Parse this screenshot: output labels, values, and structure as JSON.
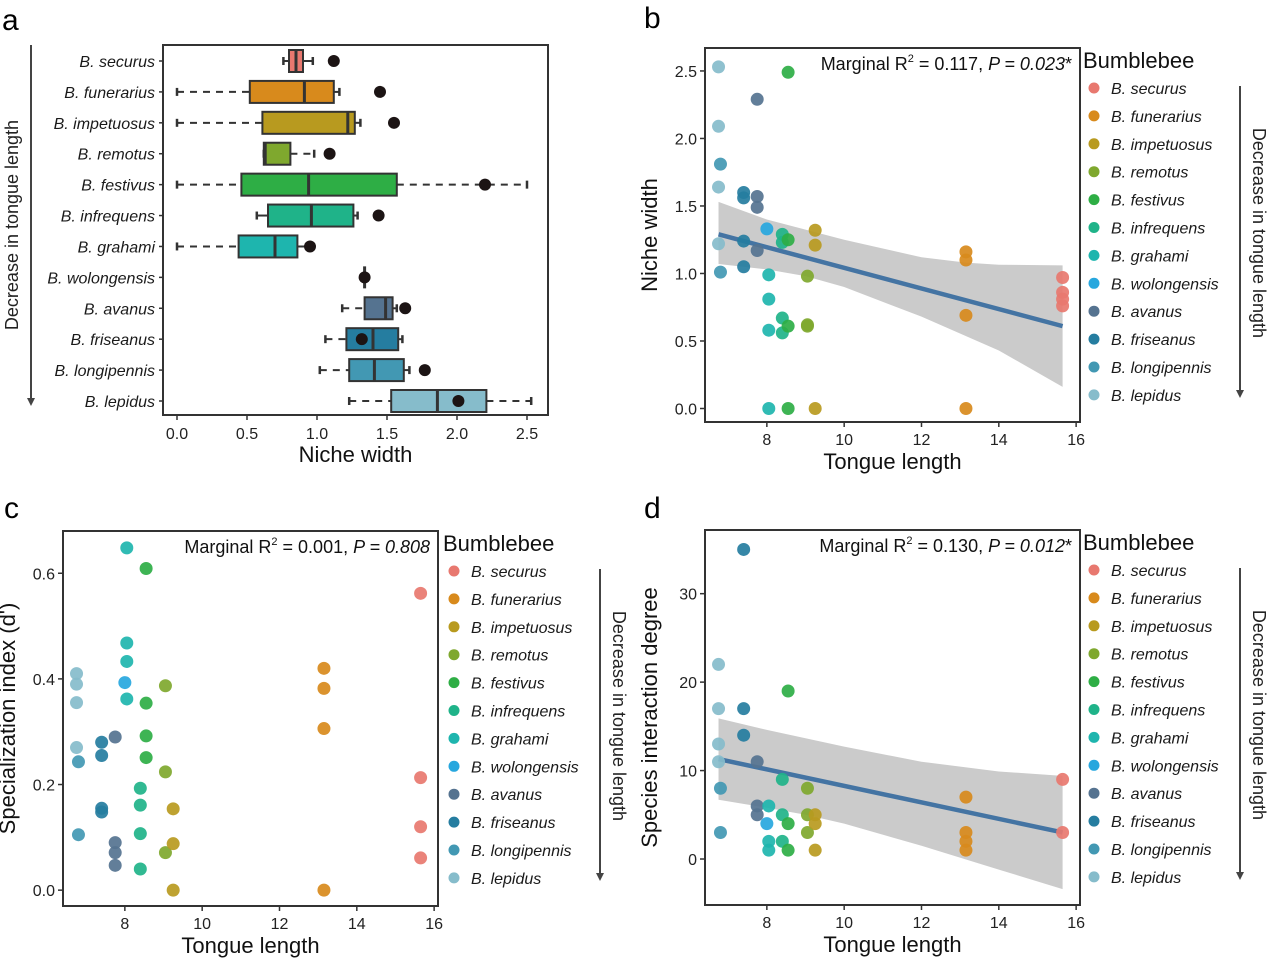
{
  "figure": {
    "panel_letters": [
      "a",
      "b",
      "c",
      "d"
    ],
    "legend_title": "Bumblebee",
    "side_arrow_label": "Decrease in tongue length",
    "species": [
      {
        "name": "B. securus",
        "color": "#E8786F"
      },
      {
        "name": "B. funerarius",
        "color": "#D88A1C"
      },
      {
        "name": "B. impetuosus",
        "color": "#B89A1F"
      },
      {
        "name": "B. remotus",
        "color": "#7FA82E"
      },
      {
        "name": "B. festivus",
        "color": "#2EAE45"
      },
      {
        "name": "B. infrequens",
        "color": "#1FB389"
      },
      {
        "name": "B. grahami",
        "color": "#1EB5AE"
      },
      {
        "name": "B. wolongensis",
        "color": "#27A7DE"
      },
      {
        "name": "B. avanus",
        "color": "#557390"
      },
      {
        "name": "B. friseanus",
        "color": "#257DA0"
      },
      {
        "name": "B. longipennis",
        "color": "#4298B3"
      },
      {
        "name": "B. lepidus",
        "color": "#86BCCB"
      }
    ]
  },
  "chart_data": [
    {
      "panel": "a",
      "type": "boxplot",
      "orientation": "horizontal",
      "xlabel": "Niche width",
      "ylabel": "Decrease in tongue length",
      "xlim": [
        -0.1,
        2.65
      ],
      "xticks": [
        "0.0",
        "0.5",
        "1.0",
        "1.5",
        "2.0",
        "2.5"
      ],
      "xtick_values": [
        0,
        0.5,
        1.0,
        1.5,
        2.0,
        2.5
      ],
      "categories": [
        "B. securus",
        "B. funerarius",
        "B. impetuosus",
        "B. remotus",
        "B. festivus",
        "B. infrequens",
        "B. grahami",
        "B. wolongensis",
        "B. avanus",
        "B. friseanus",
        "B. longipennis",
        "B. lepidus"
      ],
      "boxes": [
        {
          "wmin": 0.76,
          "q1": 0.8,
          "median": 0.85,
          "q3": 0.9,
          "wmax": 0.97,
          "dashed": false,
          "point": 1.12
        },
        {
          "wmin": 0.0,
          "q1": 0.52,
          "median": 0.91,
          "q3": 1.12,
          "wmax": 1.16,
          "dashed": true,
          "point": 1.45
        },
        {
          "wmin": 0.0,
          "q1": 0.61,
          "median": 1.22,
          "q3": 1.27,
          "wmax": 1.31,
          "dashed": true,
          "point": 1.55
        },
        {
          "wmin": 0.62,
          "q1": 0.62,
          "median": 0.63,
          "q3": 0.81,
          "wmax": 0.98,
          "dashed": true,
          "point": 1.09
        },
        {
          "wmin": 0.0,
          "q1": 0.46,
          "median": 0.94,
          "q3": 1.57,
          "wmax": 2.5,
          "dashed": true,
          "point": 2.2
        },
        {
          "wmin": 0.57,
          "q1": 0.65,
          "median": 0.96,
          "q3": 1.26,
          "wmax": 1.29,
          "dashed": false,
          "point": 1.44
        },
        {
          "wmin": 0.0,
          "q1": 0.44,
          "median": 0.7,
          "q3": 0.86,
          "wmax": 0.97,
          "dashed": true,
          "point": 0.95
        },
        {
          "wmin": 1.34,
          "q1": 1.34,
          "median": 1.34,
          "q3": 1.34,
          "wmax": 1.34,
          "dashed": false,
          "point": 1.34
        },
        {
          "wmin": 1.18,
          "q1": 1.34,
          "median": 1.49,
          "q3": 1.54,
          "wmax": 1.57,
          "dashed": true,
          "point": 1.63
        },
        {
          "wmin": 1.06,
          "q1": 1.21,
          "median": 1.4,
          "q3": 1.58,
          "wmax": 1.61,
          "dashed": true,
          "point": 1.32
        },
        {
          "wmin": 1.02,
          "q1": 1.23,
          "median": 1.41,
          "q3": 1.62,
          "wmax": 1.66,
          "dashed": true,
          "point": 1.77
        },
        {
          "wmin": 1.23,
          "q1": 1.53,
          "median": 1.86,
          "q3": 2.21,
          "wmax": 2.53,
          "dashed": true,
          "point": 2.01
        }
      ]
    },
    {
      "panel": "b",
      "type": "scatter",
      "xlabel": "Tongue length",
      "ylabel": "Niche width",
      "xlim": [
        6.4,
        16.1
      ],
      "ylim": [
        -0.1,
        2.67
      ],
      "xticks": [
        "8",
        "10",
        "12",
        "14",
        "16"
      ],
      "xtick_values": [
        8,
        10,
        12,
        14,
        16
      ],
      "yticks": [
        "0.0",
        "0.5",
        "1.0",
        "1.5",
        "2.0",
        "2.5"
      ],
      "ytick_values": [
        0,
        0.5,
        1.0,
        1.5,
        2.0,
        2.5
      ],
      "annotation": {
        "prefix": "Marginal R",
        "sup": "2",
        "mid": " = 0.117, ",
        "p_label": "P",
        "p_value": " = 0.023",
        "suffix": "*"
      },
      "fit": {
        "x0": 6.75,
        "y0": 1.29,
        "x1": 15.65,
        "y1": 0.61
      },
      "ci_upper": [
        [
          6.75,
          1.53
        ],
        [
          8,
          1.4
        ],
        [
          10,
          1.25
        ],
        [
          12,
          1.12
        ],
        [
          13.15,
          1.08
        ],
        [
          14,
          1.065
        ],
        [
          15.65,
          1.06
        ]
      ],
      "ci_lower": [
        [
          6.75,
          1.07
        ],
        [
          8,
          1.03
        ],
        [
          9,
          0.98
        ],
        [
          10,
          0.9
        ],
        [
          12,
          0.68
        ],
        [
          14,
          0.43
        ],
        [
          15.65,
          0.16
        ]
      ],
      "points": [
        {
          "sp": 11,
          "x": 6.75,
          "y": 2.53
        },
        {
          "sp": 11,
          "x": 6.75,
          "y": 2.09
        },
        {
          "sp": 11,
          "x": 6.75,
          "y": 1.64
        },
        {
          "sp": 11,
          "x": 6.75,
          "y": 1.22
        },
        {
          "sp": 10,
          "x": 6.8,
          "y": 1.81
        },
        {
          "sp": 10,
          "x": 6.8,
          "y": 1.01
        },
        {
          "sp": 9,
          "x": 7.4,
          "y": 1.6
        },
        {
          "sp": 9,
          "x": 7.4,
          "y": 1.56
        },
        {
          "sp": 9,
          "x": 7.4,
          "y": 1.24
        },
        {
          "sp": 9,
          "x": 7.4,
          "y": 1.05
        },
        {
          "sp": 8,
          "x": 7.75,
          "y": 2.29
        },
        {
          "sp": 8,
          "x": 7.75,
          "y": 1.57
        },
        {
          "sp": 8,
          "x": 7.75,
          "y": 1.49
        },
        {
          "sp": 8,
          "x": 7.75,
          "y": 1.17
        },
        {
          "sp": 7,
          "x": 8.0,
          "y": 1.33
        },
        {
          "sp": 6,
          "x": 8.05,
          "y": 0.99
        },
        {
          "sp": 6,
          "x": 8.05,
          "y": 0.81
        },
        {
          "sp": 6,
          "x": 8.05,
          "y": 0.58
        },
        {
          "sp": 6,
          "x": 8.05,
          "y": 0.0
        },
        {
          "sp": 5,
          "x": 8.4,
          "y": 1.29
        },
        {
          "sp": 5,
          "x": 8.4,
          "y": 1.23
        },
        {
          "sp": 5,
          "x": 8.4,
          "y": 0.67
        },
        {
          "sp": 5,
          "x": 8.4,
          "y": 0.56
        },
        {
          "sp": 4,
          "x": 8.55,
          "y": 2.49
        },
        {
          "sp": 4,
          "x": 8.55,
          "y": 1.25
        },
        {
          "sp": 4,
          "x": 8.55,
          "y": 0.61
        },
        {
          "sp": 4,
          "x": 8.55,
          "y": 0.0
        },
        {
          "sp": 3,
          "x": 9.05,
          "y": 0.98
        },
        {
          "sp": 3,
          "x": 9.05,
          "y": 0.62
        },
        {
          "sp": 3,
          "x": 9.05,
          "y": 0.61
        },
        {
          "sp": 2,
          "x": 9.25,
          "y": 1.32
        },
        {
          "sp": 2,
          "x": 9.25,
          "y": 1.21
        },
        {
          "sp": 2,
          "x": 9.25,
          "y": 0.0
        },
        {
          "sp": 1,
          "x": 13.15,
          "y": 1.16
        },
        {
          "sp": 1,
          "x": 13.15,
          "y": 1.1
        },
        {
          "sp": 1,
          "x": 13.15,
          "y": 0.69
        },
        {
          "sp": 1,
          "x": 13.15,
          "y": 0.0
        },
        {
          "sp": 0,
          "x": 15.65,
          "y": 0.97
        },
        {
          "sp": 0,
          "x": 15.65,
          "y": 0.86
        },
        {
          "sp": 0,
          "x": 15.65,
          "y": 0.81
        },
        {
          "sp": 0,
          "x": 15.65,
          "y": 0.76
        }
      ]
    },
    {
      "panel": "c",
      "type": "scatter",
      "xlabel": "Tongue length",
      "ylabel": "Specialization index (d')",
      "xlim": [
        6.4,
        16.1
      ],
      "ylim": [
        -0.03,
        0.68
      ],
      "xticks": [
        "8",
        "10",
        "12",
        "14",
        "16"
      ],
      "xtick_values": [
        8,
        10,
        12,
        14,
        16
      ],
      "yticks": [
        "0.0",
        "0.2",
        "0.4",
        "0.6"
      ],
      "ytick_values": [
        0,
        0.2,
        0.4,
        0.6
      ],
      "annotation": {
        "prefix": "Marginal R",
        "sup": "2",
        "mid": " = 0.001, ",
        "p_label": "P",
        "p_value": " = 0.808",
        "suffix": ""
      },
      "points": [
        {
          "sp": 11,
          "x": 6.75,
          "y": 0.41
        },
        {
          "sp": 11,
          "x": 6.75,
          "y": 0.39
        },
        {
          "sp": 11,
          "x": 6.75,
          "y": 0.355
        },
        {
          "sp": 11,
          "x": 6.75,
          "y": 0.27
        },
        {
          "sp": 10,
          "x": 6.8,
          "y": 0.243
        },
        {
          "sp": 10,
          "x": 6.8,
          "y": 0.105
        },
        {
          "sp": 9,
          "x": 7.4,
          "y": 0.28
        },
        {
          "sp": 9,
          "x": 7.4,
          "y": 0.255
        },
        {
          "sp": 9,
          "x": 7.4,
          "y": 0.155
        },
        {
          "sp": 9,
          "x": 7.4,
          "y": 0.148
        },
        {
          "sp": 8,
          "x": 7.75,
          "y": 0.29
        },
        {
          "sp": 8,
          "x": 7.75,
          "y": 0.09
        },
        {
          "sp": 8,
          "x": 7.75,
          "y": 0.071
        },
        {
          "sp": 8,
          "x": 7.75,
          "y": 0.047
        },
        {
          "sp": 7,
          "x": 8.0,
          "y": 0.393
        },
        {
          "sp": 6,
          "x": 8.05,
          "y": 0.648
        },
        {
          "sp": 6,
          "x": 8.05,
          "y": 0.468
        },
        {
          "sp": 6,
          "x": 8.05,
          "y": 0.433
        },
        {
          "sp": 6,
          "x": 8.05,
          "y": 0.362
        },
        {
          "sp": 5,
          "x": 8.4,
          "y": 0.193
        },
        {
          "sp": 5,
          "x": 8.4,
          "y": 0.161
        },
        {
          "sp": 5,
          "x": 8.4,
          "y": 0.107
        },
        {
          "sp": 5,
          "x": 8.4,
          "y": 0.04
        },
        {
          "sp": 4,
          "x": 8.55,
          "y": 0.609
        },
        {
          "sp": 4,
          "x": 8.55,
          "y": 0.354
        },
        {
          "sp": 4,
          "x": 8.55,
          "y": 0.292
        },
        {
          "sp": 4,
          "x": 8.55,
          "y": 0.251
        },
        {
          "sp": 3,
          "x": 9.05,
          "y": 0.387
        },
        {
          "sp": 3,
          "x": 9.05,
          "y": 0.224
        },
        {
          "sp": 3,
          "x": 9.05,
          "y": 0.071
        },
        {
          "sp": 2,
          "x": 9.25,
          "y": 0.154
        },
        {
          "sp": 2,
          "x": 9.25,
          "y": 0.088
        },
        {
          "sp": 2,
          "x": 9.25,
          "y": 0.0
        },
        {
          "sp": 1,
          "x": 13.15,
          "y": 0.42
        },
        {
          "sp": 1,
          "x": 13.15,
          "y": 0.382
        },
        {
          "sp": 1,
          "x": 13.15,
          "y": 0.306
        },
        {
          "sp": 1,
          "x": 13.15,
          "y": 0.0
        },
        {
          "sp": 0,
          "x": 15.65,
          "y": 0.562
        },
        {
          "sp": 0,
          "x": 15.65,
          "y": 0.213
        },
        {
          "sp": 0,
          "x": 15.65,
          "y": 0.12
        },
        {
          "sp": 0,
          "x": 15.65,
          "y": 0.061
        }
      ]
    },
    {
      "panel": "d",
      "type": "scatter",
      "xlabel": "Tongue length",
      "ylabel": "Species interaction degree",
      "xlim": [
        6.4,
        16.1
      ],
      "ylim": [
        -5.2,
        37.2
      ],
      "xticks": [
        "8",
        "10",
        "12",
        "14",
        "16"
      ],
      "xtick_values": [
        8,
        10,
        12,
        14,
        16
      ],
      "yticks": [
        "0",
        "10",
        "20",
        "30"
      ],
      "ytick_values": [
        0,
        10,
        20,
        30
      ],
      "annotation": {
        "prefix": "Marginal R",
        "sup": "2",
        "mid": " = 0.130, ",
        "p_label": "P",
        "p_value": " = 0.012",
        "suffix": "*"
      },
      "fit": {
        "x0": 6.75,
        "y0": 11.3,
        "x1": 15.65,
        "y1": 3.0
      },
      "ci_upper": [
        [
          6.75,
          15.9
        ],
        [
          8,
          14.6
        ],
        [
          10,
          12.7
        ],
        [
          12,
          11.0
        ],
        [
          14,
          9.9
        ],
        [
          15.65,
          9.4
        ]
      ],
      "ci_lower": [
        [
          6.75,
          6.7
        ],
        [
          8,
          5.8
        ],
        [
          9,
          5.0
        ],
        [
          10,
          4.0
        ],
        [
          12,
          1.5
        ],
        [
          14,
          -1.2
        ],
        [
          15.65,
          -3.4
        ]
      ],
      "points": [
        {
          "sp": 11,
          "x": 6.75,
          "y": 22
        },
        {
          "sp": 11,
          "x": 6.75,
          "y": 17
        },
        {
          "sp": 11,
          "x": 6.75,
          "y": 13
        },
        {
          "sp": 11,
          "x": 6.75,
          "y": 11
        },
        {
          "sp": 10,
          "x": 6.8,
          "y": 8
        },
        {
          "sp": 10,
          "x": 6.8,
          "y": 3
        },
        {
          "sp": 9,
          "x": 7.4,
          "y": 35
        },
        {
          "sp": 9,
          "x": 7.4,
          "y": 17
        },
        {
          "sp": 9,
          "x": 7.4,
          "y": 14
        },
        {
          "sp": 8,
          "x": 7.75,
          "y": 11
        },
        {
          "sp": 8,
          "x": 7.75,
          "y": 6
        },
        {
          "sp": 8,
          "x": 7.75,
          "y": 5
        },
        {
          "sp": 7,
          "x": 8.0,
          "y": 4
        },
        {
          "sp": 6,
          "x": 8.05,
          "y": 6
        },
        {
          "sp": 6,
          "x": 8.05,
          "y": 2
        },
        {
          "sp": 6,
          "x": 8.05,
          "y": 1
        },
        {
          "sp": 5,
          "x": 8.4,
          "y": 9
        },
        {
          "sp": 5,
          "x": 8.4,
          "y": 5
        },
        {
          "sp": 5,
          "x": 8.4,
          "y": 2
        },
        {
          "sp": 4,
          "x": 8.55,
          "y": 19
        },
        {
          "sp": 4,
          "x": 8.55,
          "y": 4
        },
        {
          "sp": 4,
          "x": 8.55,
          "y": 1
        },
        {
          "sp": 3,
          "x": 9.05,
          "y": 8
        },
        {
          "sp": 3,
          "x": 9.05,
          "y": 5
        },
        {
          "sp": 3,
          "x": 9.05,
          "y": 3
        },
        {
          "sp": 2,
          "x": 9.25,
          "y": 5
        },
        {
          "sp": 2,
          "x": 9.25,
          "y": 4
        },
        {
          "sp": 2,
          "x": 9.25,
          "y": 1
        },
        {
          "sp": 1,
          "x": 13.15,
          "y": 7
        },
        {
          "sp": 1,
          "x": 13.15,
          "y": 3
        },
        {
          "sp": 1,
          "x": 13.15,
          "y": 2
        },
        {
          "sp": 1,
          "x": 13.15,
          "y": 1
        },
        {
          "sp": 0,
          "x": 15.65,
          "y": 9
        },
        {
          "sp": 0,
          "x": 15.65,
          "y": 3
        }
      ]
    }
  ]
}
